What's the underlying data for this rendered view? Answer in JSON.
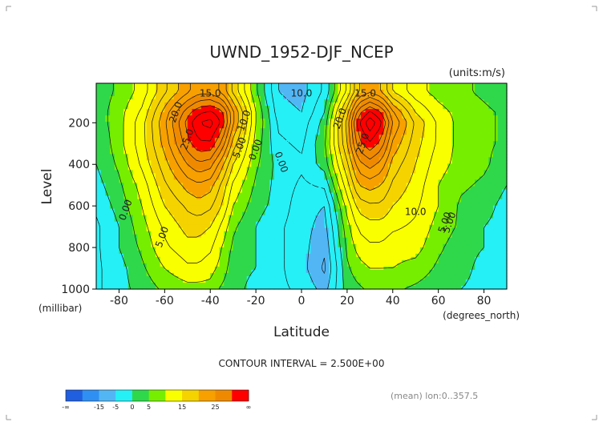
{
  "chart_data": {
    "type": "heatmap",
    "title": "UWND_1952-DJF_NCEP",
    "units": "(units:m/s)",
    "xlabel": "Latitude",
    "xunits": "(degrees_north)",
    "ylabel": "Level",
    "yunits": "(millibar)",
    "xlim": [
      -90,
      90
    ],
    "ylim": [
      1000,
      10
    ],
    "xticks": [
      -80,
      -60,
      -40,
      -20,
      0,
      20,
      40,
      60,
      80
    ],
    "yticks": [
      200,
      400,
      600,
      800,
      1000
    ],
    "x": [
      -90,
      -80,
      -70,
      -60,
      -50,
      -45,
      -40,
      -35,
      -30,
      -20,
      -10,
      0,
      10,
      20,
      25,
      30,
      35,
      40,
      50,
      60,
      70,
      80,
      90
    ],
    "y": [
      50,
      150,
      200,
      300,
      400,
      500,
      600,
      700,
      800,
      900,
      1000
    ],
    "values": [
      [
        1,
        3,
        6,
        12,
        17,
        19,
        19,
        17,
        12,
        3,
        -5,
        -6,
        -2,
        8,
        15,
        17,
        15,
        10,
        6,
        4,
        3,
        2,
        1
      ],
      [
        1,
        4,
        8,
        16,
        24,
        27,
        28,
        26,
        18,
        5,
        -4,
        -5,
        0,
        14,
        24,
        28,
        25,
        18,
        10,
        6,
        4,
        3,
        2
      ],
      [
        1,
        4,
        9,
        17,
        26,
        30,
        31,
        27,
        18,
        5,
        -3,
        -4,
        1,
        16,
        27,
        32,
        28,
        20,
        12,
        7,
        4,
        3,
        2
      ],
      [
        0,
        4,
        9,
        16,
        24,
        27,
        27,
        22,
        14,
        4,
        -2,
        -3,
        2,
        15,
        24,
        27,
        24,
        17,
        11,
        7,
        4,
        3,
        2
      ],
      [
        0,
        3,
        8,
        14,
        20,
        22,
        21,
        16,
        10,
        3,
        -1,
        -2,
        1,
        12,
        19,
        21,
        19,
        14,
        10,
        6,
        4,
        3,
        1
      ],
      [
        -1,
        2,
        6,
        12,
        16,
        17,
        16,
        12,
        7,
        2,
        -1,
        -3,
        -2,
        9,
        15,
        16,
        15,
        12,
        9,
        5,
        3,
        2,
        0
      ],
      [
        -2,
        1,
        5,
        10,
        13,
        14,
        13,
        10,
        5,
        1,
        -1,
        -4,
        -5,
        6,
        11,
        12,
        12,
        10,
        8,
        5,
        2,
        1,
        -1
      ],
      [
        -3,
        0,
        4,
        8,
        11,
        11,
        10,
        7,
        3,
        0,
        -2,
        -4,
        -6,
        4,
        8,
        9,
        9,
        8,
        7,
        4,
        2,
        0,
        -1
      ],
      [
        -3,
        0,
        3,
        7,
        9,
        9,
        8,
        5,
        2,
        0,
        -2,
        -4,
        -7,
        3,
        6,
        7,
        7,
        6,
        6,
        3,
        1,
        0,
        -1
      ],
      [
        -3,
        -1,
        2,
        5,
        7,
        7,
        6,
        4,
        1,
        0,
        -2,
        -4,
        -8,
        2,
        4,
        5,
        5,
        5,
        4,
        2,
        1,
        -1,
        -1
      ],
      [
        -3,
        -1,
        1,
        3,
        4,
        4,
        4,
        2,
        1,
        -1,
        -2,
        -3,
        -6,
        1,
        2,
        3,
        3,
        3,
        2,
        1,
        0,
        -1,
        -1
      ]
    ],
    "contour_labels": [
      "15.0",
      "20.0",
      "25.0",
      "10.0",
      "5.00",
      "0.00",
      "15.0",
      "20.0",
      "25.0",
      "10.0",
      "10.0",
      "5.00",
      "0.00",
      "0.00",
      "5.00",
      "5.00"
    ],
    "contour_interval_text": "CONTOUR INTERVAL = 2.500E+00",
    "footnote": "(mean) lon:0..357.5",
    "colorbar": {
      "colors": [
        "#1f5fe0",
        "#2f8ff2",
        "#52b6f5",
        "#25f0f6",
        "#2fd84a",
        "#76ee00",
        "#faff00",
        "#f4d300",
        "#f7a000",
        "#ef8a00",
        "#ff0000"
      ],
      "tick_labels": [
        "-∞",
        "-15",
        "-5",
        "0",
        "5",
        "15",
        "25",
        "∞"
      ]
    }
  }
}
